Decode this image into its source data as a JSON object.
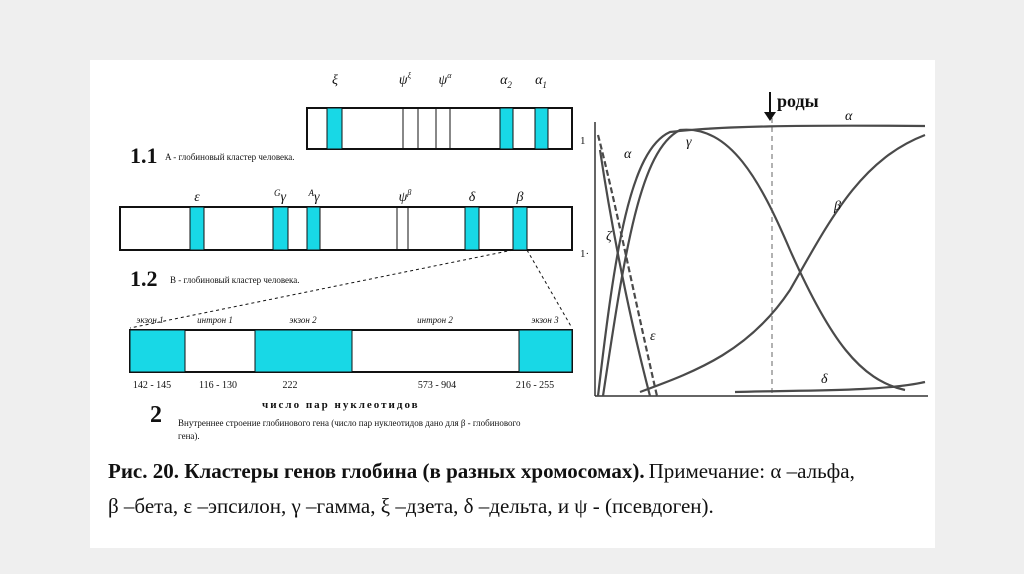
{
  "cluster_a": {
    "number": "1.1",
    "caption": "A - глобиновый кластер человека.",
    "genes": [
      {
        "symbol": "ξ"
      },
      {
        "symbol": "ψ",
        "sup": "ξ"
      },
      {
        "symbol": "ψ",
        "sup": "α"
      },
      {
        "symbol": "α",
        "sub": "2"
      },
      {
        "symbol": "α",
        "sub": "1"
      }
    ]
  },
  "cluster_b": {
    "number": "1.2",
    "caption": "B - глобиновый кластер человека.",
    "genes": [
      {
        "symbol": "ε"
      },
      {
        "pre": "G",
        "symbol": "γ"
      },
      {
        "pre": "A",
        "symbol": "γ"
      },
      {
        "symbol": "ψ",
        "sup": "β"
      },
      {
        "symbol": "δ"
      },
      {
        "symbol": "β"
      }
    ]
  },
  "gene": {
    "number": "2",
    "segments": [
      "экзон 1",
      "интрон 1",
      "экзон 2",
      "интрон 2",
      "экзон 3"
    ],
    "lengths": [
      "142 - 145",
      "116 - 130",
      "222",
      "573 - 904",
      "216 - 255"
    ],
    "lengths_title": "число пар нуклеотидов",
    "description": [
      "Внутреннее строение глобинового гена (число пар нуклеотидов дано для β - глобинового",
      "гена)."
    ]
  },
  "plot": {
    "birth": "роды",
    "ticks": [
      "1",
      "1·"
    ],
    "curves": [
      "α",
      "γ",
      "ζ",
      "ε",
      "β",
      "δ"
    ]
  },
  "caption": {
    "title": "Рис. 20.  Кластеры генов глобина (в разных хромосомах).",
    "note": "Примечание: α –альфа,",
    "note2": "β –бета,  ε –эпсилон, γ –гамма, ξ –дзета, δ –дельта, и ψ - (псевдоген)."
  }
}
